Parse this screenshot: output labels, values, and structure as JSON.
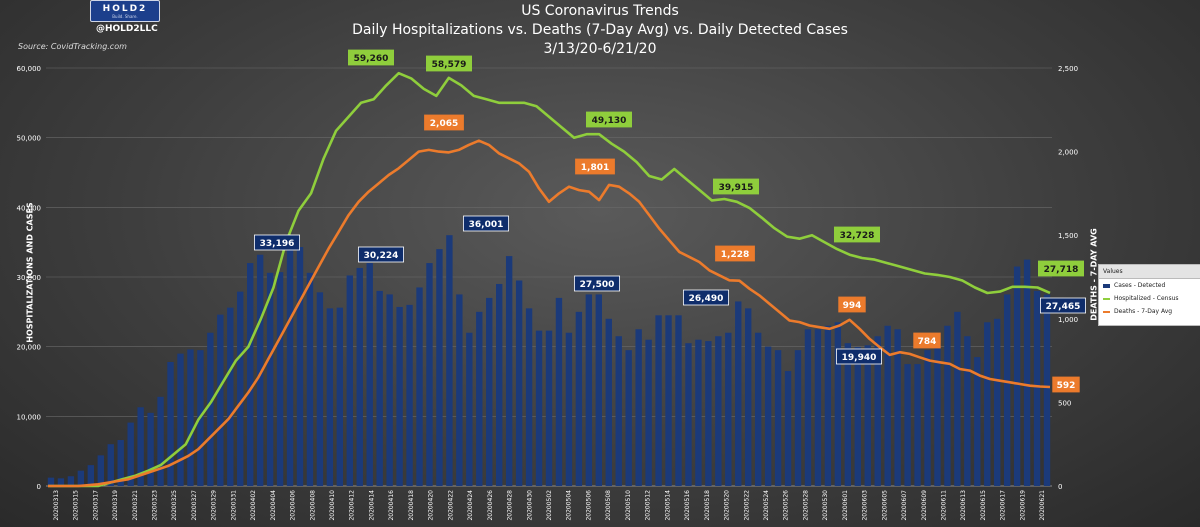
{
  "logo": {
    "wordmark": "HOLD2",
    "tagline": "Build. Share."
  },
  "handle": "@HOLD2LLC",
  "source": "Source: CovidTracking.com",
  "chart_data": {
    "type": "bar",
    "title": "US Coronavirus Trends",
    "subtitle": "Daily Hospitalizations vs. Deaths (7-Day Avg) vs. Daily Detected Cases",
    "date_range": "3/13/20-6/21/20",
    "ylabel": "HOSPITALIZATIONS AND  CASES",
    "y2label": "DEATHS - 7-DAY AVG",
    "ylim": [
      0,
      60000
    ],
    "y2lim": [
      0,
      2500
    ],
    "yticks": [
      "0",
      "10,000",
      "20,000",
      "30,000",
      "40,000",
      "50,000",
      "60,000"
    ],
    "y2ticks": [
      "0",
      "500",
      "1,000",
      "1,500",
      "2,000",
      "2,500"
    ],
    "x_tick_labels": [
      "20200313",
      "20200315",
      "20200317",
      "20200319",
      "20200321",
      "20200323",
      "20200325",
      "20200327",
      "20200329",
      "20200331",
      "20200402",
      "20200404",
      "20200406",
      "20200408",
      "20200410",
      "20200412",
      "20200414",
      "20200416",
      "20200418",
      "20200420",
      "20200422",
      "20200424",
      "20200426",
      "20200428",
      "20200430",
      "20200502",
      "20200504",
      "20200506",
      "20200508",
      "20200510",
      "20200512",
      "20200514",
      "20200516",
      "20200518",
      "20200520",
      "20200522",
      "20200524",
      "20200526",
      "20200528",
      "20200530",
      "20200601",
      "20200603",
      "20200605",
      "20200607",
      "20200609",
      "20200611",
      "20200613",
      "20200615",
      "20200617",
      "20200619",
      "20200621"
    ],
    "legend": {
      "header": "Values",
      "entries": [
        "Cases - Detected",
        "Hospitalized - Census",
        "Deaths - 7-Day Avg"
      ]
    },
    "colors": {
      "cases": "#1b3a7a",
      "hosp": "#8fce3c",
      "deaths": "#ec7b2c",
      "bg_grid": "#6a6a6a"
    },
    "series": [
      {
        "name": "Cases - Detected",
        "axis": "left",
        "values": [
          1200,
          1100,
          1400,
          2200,
          3000,
          4400,
          6000,
          6600,
          9100,
          11300,
          10500,
          12800,
          17800,
          19000,
          19600,
          19500,
          22000,
          24600,
          25600,
          27900,
          32000,
          33196,
          30600,
          30700,
          34500,
          34300,
          30600,
          27800,
          25500,
          25600,
          30224,
          31300,
          32000,
          28000,
          27500,
          25700,
          26000,
          28500,
          32000,
          34000,
          36001,
          27500,
          22000,
          25000,
          27000,
          29000,
          33000,
          29500,
          25500,
          22300,
          22300,
          27000,
          22000,
          25000,
          27500,
          27500,
          24000,
          21500,
          19500,
          22500,
          21000,
          24500,
          24500,
          24500,
          20500,
          21000,
          20800,
          21500,
          22000,
          26490,
          25500,
          22000,
          20000,
          19500,
          16500,
          19500,
          22500,
          22500,
          23000,
          23500,
          20500,
          19940,
          20200,
          21500,
          23000,
          22500,
          17500,
          17500,
          19500,
          20500,
          23000,
          25000,
          21500,
          18500,
          23500,
          24000,
          27500,
          31500,
          32500,
          28000,
          27465
        ]
      },
      {
        "name": "Hospitalized - Census",
        "axis": "left",
        "values": [
          0,
          0,
          0,
          0,
          0,
          500,
          1000,
          1500,
          2200,
          3000,
          4500,
          6000,
          9500,
          12000,
          15000,
          18000,
          20000,
          24000,
          28500,
          35000,
          39500,
          42000,
          47000,
          51000,
          53000,
          55000,
          55500,
          57500,
          59260,
          58500,
          57000,
          56000,
          58579,
          57500,
          56000,
          55500,
          55000,
          55000,
          55000,
          54500,
          53000,
          51500,
          50000,
          50500,
          50500,
          49130,
          48000,
          46500,
          44500,
          44000,
          45500,
          44000,
          42500,
          41000,
          41200,
          40800,
          39915,
          38500,
          37000,
          35800,
          35500,
          36000,
          35000,
          34000,
          33200,
          32728,
          32500,
          32000,
          31500,
          31000,
          30500,
          30300,
          30000,
          29500,
          28500,
          27700,
          27900,
          28600,
          28600,
          28500,
          27718
        ]
      },
      {
        "name": "Deaths - 7-Day Avg",
        "axis": "right",
        "values": [
          0,
          0,
          0,
          0,
          5,
          10,
          20,
          30,
          40,
          60,
          80,
          100,
          120,
          150,
          180,
          220,
          280,
          340,
          400,
          480,
          560,
          650,
          760,
          870,
          980,
          1090,
          1200,
          1310,
          1420,
          1520,
          1620,
          1700,
          1760,
          1810,
          1860,
          1900,
          1950,
          2000,
          2010,
          2000,
          1995,
          2010,
          2040,
          2065,
          2040,
          1990,
          1960,
          1930,
          1880,
          1780,
          1700,
          1750,
          1790,
          1770,
          1760,
          1710,
          1801,
          1790,
          1750,
          1700,
          1620,
          1540,
          1470,
          1400,
          1370,
          1340,
          1290,
          1260,
          1230,
          1228,
          1180,
          1140,
          1090,
          1040,
          990,
          980,
          960,
          950,
          940,
          960,
          994,
          940,
          880,
          830,
          784,
          800,
          790,
          770,
          750,
          740,
          730,
          700,
          690,
          660,
          640,
          630,
          620,
          610,
          600,
          595,
          592
        ]
      }
    ],
    "annotations": {
      "cases": [
        "33,196",
        "30,224",
        "36,001",
        "27,500",
        "26,490",
        "19,940",
        "27,465"
      ],
      "hosp": [
        "59,260",
        "58,579",
        "49,130",
        "39,915",
        "32,728",
        "27,718"
      ],
      "deaths": [
        "2,065",
        "1,801",
        "1,228",
        "994",
        "784",
        "592"
      ]
    }
  }
}
